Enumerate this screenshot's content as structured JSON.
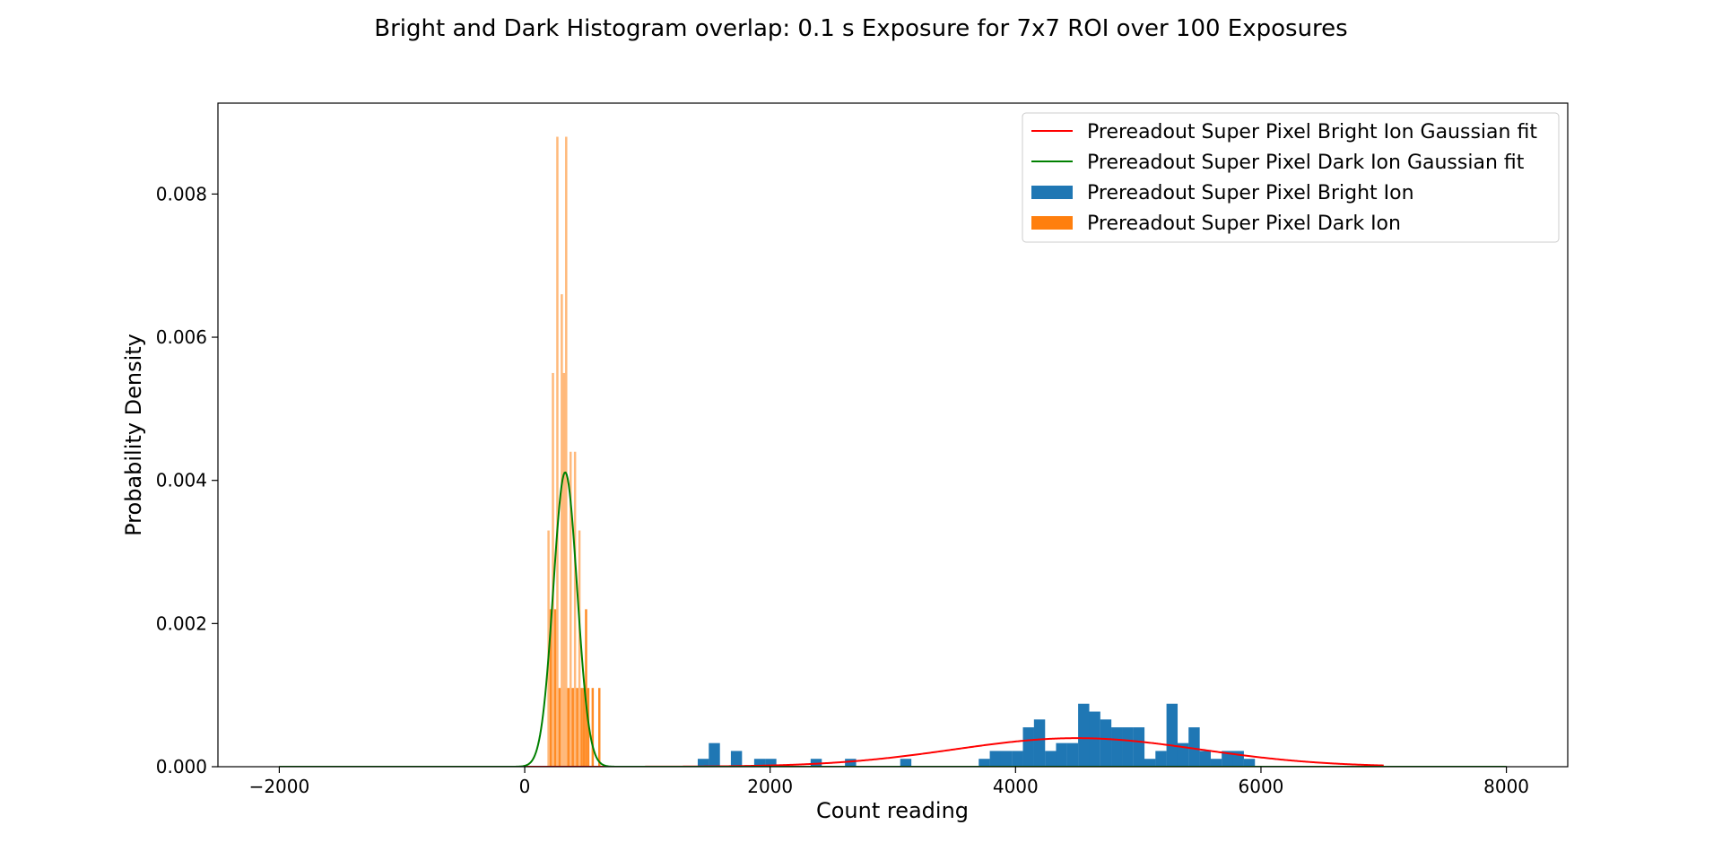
{
  "chart_data": {
    "type": "bar",
    "title": "Bright and Dark Histogram overlap: 0.1 s Exposure for 7x7 ROI over 100 Exposures",
    "xlabel": "Count reading",
    "ylabel": "Probability Density",
    "xlim": [
      -2500,
      8500
    ],
    "ylim": [
      0,
      0.00927
    ],
    "xticks": [
      -2000,
      0,
      2000,
      4000,
      6000,
      8000
    ],
    "xtick_labels": [
      "−2000",
      "0",
      "2000",
      "4000",
      "6000",
      "8000"
    ],
    "yticks": [
      0,
      0.002,
      0.004,
      0.006,
      0.008
    ],
    "ytick_labels": [
      "0.000",
      "0.002",
      "0.004",
      "0.006",
      "0.008"
    ],
    "grid": false,
    "legend": {
      "placement": "top-right",
      "entries": [
        {
          "label": "Prereadout Super Pixel Bright Ion Gaussian fit",
          "kind": "line",
          "color": "#ff0000"
        },
        {
          "label": "Prereadout Super Pixel Dark Ion Gaussian fit",
          "kind": "line",
          "color": "#008000"
        },
        {
          "label": "Prereadout Super Pixel Bright Ion",
          "kind": "patch",
          "color": "#1f77b4"
        },
        {
          "label": "Prereadout Super Pixel Dark Ion",
          "kind": "patch",
          "color": "#ff7f0e"
        }
      ]
    },
    "series": [
      {
        "name": "Prereadout Super Pixel Bright Ion",
        "kind": "histogram",
        "color": "#1f77b4",
        "bin_width": 90.9,
        "bins": [
          [
            1410,
            0.00011
          ],
          [
            1500,
            0.00033
          ],
          [
            1680,
            0.00022
          ],
          [
            1870,
            0.00011
          ],
          [
            1960,
            0.00011
          ],
          [
            2330,
            0.00011
          ],
          [
            2610,
            0.00011
          ],
          [
            3060,
            0.00011
          ],
          [
            3700,
            0.00011
          ],
          [
            3790,
            0.00022
          ],
          [
            3880,
            0.00022
          ],
          [
            3970,
            0.00022
          ],
          [
            4060,
            0.00055
          ],
          [
            4150,
            0.00066
          ],
          [
            4240,
            0.00022
          ],
          [
            4330,
            0.00033
          ],
          [
            4420,
            0.00033
          ],
          [
            4510,
            0.00088
          ],
          [
            4600,
            0.00077
          ],
          [
            4690,
            0.00066
          ],
          [
            4780,
            0.00055
          ],
          [
            4870,
            0.00055
          ],
          [
            4960,
            0.00055
          ],
          [
            5050,
            0.00011
          ],
          [
            5140,
            0.00022
          ],
          [
            5230,
            0.00088
          ],
          [
            5320,
            0.00033
          ],
          [
            5410,
            0.00055
          ],
          [
            5500,
            0.00022
          ],
          [
            5590,
            0.00011
          ],
          [
            5680,
            0.00022
          ],
          [
            5770,
            0.00022
          ],
          [
            5860,
            0.00011
          ]
        ]
      },
      {
        "name": "Prereadout Super Pixel Dark Ion",
        "kind": "histogram",
        "color": "#ff7f0e",
        "bin_width": 18.2,
        "bins": [
          [
            185,
            0.0033
          ],
          [
            203,
            0.0022
          ],
          [
            221,
            0.0055
          ],
          [
            239,
            0.0022
          ],
          [
            257,
            0.0088
          ],
          [
            275,
            0.0011
          ],
          [
            293,
            0.0066
          ],
          [
            311,
            0.0055
          ],
          [
            329,
            0.0088
          ],
          [
            347,
            0.0011
          ],
          [
            365,
            0.0044
          ],
          [
            383,
            0.0011
          ],
          [
            401,
            0.0044
          ],
          [
            419,
            0.0011
          ],
          [
            437,
            0.0033
          ],
          [
            455,
            0.0011
          ],
          [
            473,
            0.0011
          ],
          [
            491,
            0.0022
          ],
          [
            509,
            0.0011
          ],
          [
            545,
            0.0011
          ],
          [
            599,
            0.0011
          ]
        ]
      },
      {
        "name": "Prereadout Super Pixel Bright Ion Gaussian fit",
        "kind": "gaussian",
        "color": "#ff0000",
        "mean": 4500,
        "sigma": 1000,
        "x_range": [
          -2000,
          7000
        ]
      },
      {
        "name": "Prereadout Super Pixel Dark Ion Gaussian fit",
        "kind": "gaussian",
        "color": "#008000",
        "mean": 330,
        "sigma": 97,
        "x_range": [
          -2000,
          8000
        ]
      }
    ]
  }
}
